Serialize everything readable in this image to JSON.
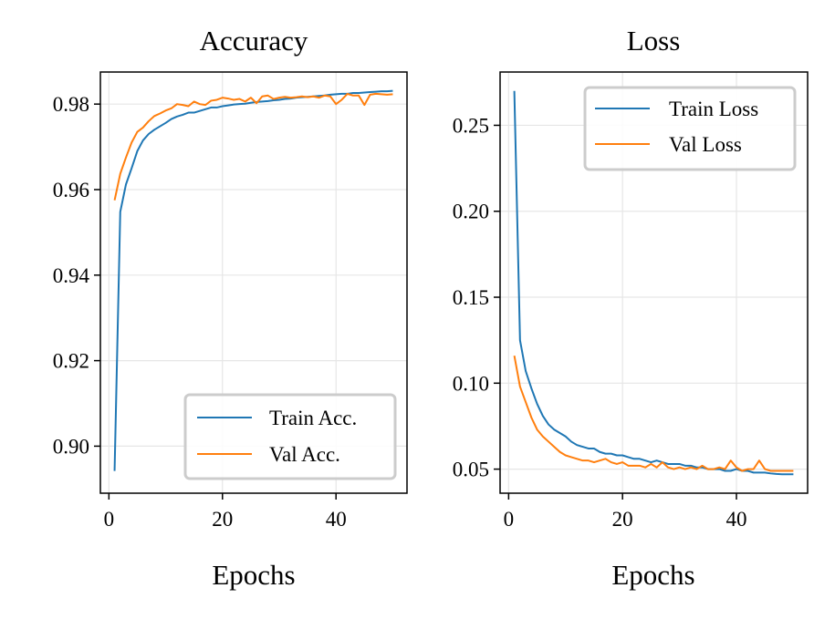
{
  "chart_data": [
    {
      "type": "line",
      "title": "Accuracy",
      "xlabel": "Epochs",
      "ylabel": "",
      "xlim": [
        -1.5,
        52.5
      ],
      "ylim": [
        0.889,
        0.9875
      ],
      "xticks": [
        0,
        20,
        40
      ],
      "xtick_labels": [
        "0",
        "20",
        "40"
      ],
      "yticks": [
        0.9,
        0.92,
        0.94,
        0.96,
        0.98
      ],
      "ytick_labels": [
        "0.90",
        "0.92",
        "0.94",
        "0.96",
        "0.98"
      ],
      "grid": true,
      "legend_position": "lower-right",
      "x": [
        1,
        2,
        3,
        4,
        5,
        6,
        7,
        8,
        9,
        10,
        11,
        12,
        13,
        14,
        15,
        16,
        17,
        18,
        19,
        20,
        21,
        22,
        23,
        24,
        25,
        26,
        27,
        28,
        29,
        30,
        31,
        32,
        33,
        34,
        35,
        36,
        37,
        38,
        39,
        40,
        41,
        42,
        43,
        44,
        45,
        46,
        47,
        48,
        49,
        50
      ],
      "series": [
        {
          "name": "Train Acc.",
          "color": "#1f77b4",
          "values": [
            0.8942,
            0.9548,
            0.9612,
            0.965,
            0.969,
            0.9715,
            0.973,
            0.974,
            0.9748,
            0.9756,
            0.9765,
            0.9771,
            0.9775,
            0.978,
            0.978,
            0.9784,
            0.9788,
            0.9792,
            0.9792,
            0.9795,
            0.9797,
            0.9799,
            0.98,
            0.9801,
            0.9803,
            0.9805,
            0.9806,
            0.9807,
            0.9809,
            0.981,
            0.9812,
            0.9813,
            0.9815,
            0.9816,
            0.9817,
            0.9818,
            0.9819,
            0.982,
            0.9822,
            0.9823,
            0.9824,
            0.9824,
            0.9826,
            0.9826,
            0.9827,
            0.9828,
            0.9829,
            0.983,
            0.983,
            0.9831
          ]
        },
        {
          "name": "Val Acc.",
          "color": "#ff7f0e",
          "values": [
            0.9575,
            0.9637,
            0.9675,
            0.971,
            0.9735,
            0.9745,
            0.976,
            0.9772,
            0.9778,
            0.9785,
            0.979,
            0.98,
            0.9798,
            0.9795,
            0.9806,
            0.98,
            0.9798,
            0.9808,
            0.981,
            0.9815,
            0.9813,
            0.981,
            0.9812,
            0.9806,
            0.9815,
            0.9802,
            0.9818,
            0.982,
            0.9812,
            0.9815,
            0.9817,
            0.9815,
            0.9816,
            0.9818,
            0.9816,
            0.9818,
            0.9815,
            0.982,
            0.9818,
            0.98,
            0.981,
            0.9824,
            0.982,
            0.982,
            0.9798,
            0.9822,
            0.9824,
            0.9823,
            0.9822,
            0.9823
          ]
        }
      ]
    },
    {
      "type": "line",
      "title": "Loss",
      "xlabel": "Epochs",
      "ylabel": "",
      "xlim": [
        -1.5,
        52.5
      ],
      "ylim": [
        0.036,
        0.281
      ],
      "xticks": [
        0,
        20,
        40
      ],
      "xtick_labels": [
        "0",
        "20",
        "40"
      ],
      "yticks": [
        0.05,
        0.1,
        0.15,
        0.2,
        0.25
      ],
      "ytick_labels": [
        "0.05",
        "0.10",
        "0.15",
        "0.20",
        "0.25"
      ],
      "grid": true,
      "legend_position": "upper-right",
      "x": [
        1,
        2,
        3,
        4,
        5,
        6,
        7,
        8,
        9,
        10,
        11,
        12,
        13,
        14,
        15,
        16,
        17,
        18,
        19,
        20,
        21,
        22,
        23,
        24,
        25,
        26,
        27,
        28,
        29,
        30,
        31,
        32,
        33,
        34,
        35,
        36,
        37,
        38,
        39,
        40,
        41,
        42,
        43,
        44,
        45,
        46,
        47,
        48,
        49,
        50
      ],
      "series": [
        {
          "name": "Train Loss",
          "color": "#1f77b4",
          "values": [
            0.27,
            0.125,
            0.107,
            0.097,
            0.088,
            0.081,
            0.076,
            0.073,
            0.071,
            0.069,
            0.066,
            0.064,
            0.063,
            0.062,
            0.062,
            0.06,
            0.059,
            0.059,
            0.058,
            0.058,
            0.057,
            0.056,
            0.056,
            0.055,
            0.054,
            0.055,
            0.054,
            0.053,
            0.053,
            0.053,
            0.052,
            0.052,
            0.051,
            0.051,
            0.05,
            0.05,
            0.05,
            0.049,
            0.049,
            0.05,
            0.049,
            0.049,
            0.048,
            0.048,
            0.048,
            0.0475,
            0.0472,
            0.047,
            0.047,
            0.047
          ]
        },
        {
          "name": "Val Loss",
          "color": "#ff7f0e",
          "values": [
            0.116,
            0.098,
            0.089,
            0.08,
            0.073,
            0.069,
            0.066,
            0.063,
            0.06,
            0.058,
            0.057,
            0.056,
            0.055,
            0.055,
            0.054,
            0.055,
            0.056,
            0.054,
            0.053,
            0.054,
            0.052,
            0.052,
            0.052,
            0.051,
            0.053,
            0.051,
            0.054,
            0.051,
            0.05,
            0.051,
            0.05,
            0.051,
            0.05,
            0.052,
            0.05,
            0.05,
            0.051,
            0.05,
            0.055,
            0.051,
            0.049,
            0.05,
            0.05,
            0.055,
            0.05,
            0.049,
            0.049,
            0.049,
            0.049,
            0.049
          ]
        }
      ]
    }
  ]
}
